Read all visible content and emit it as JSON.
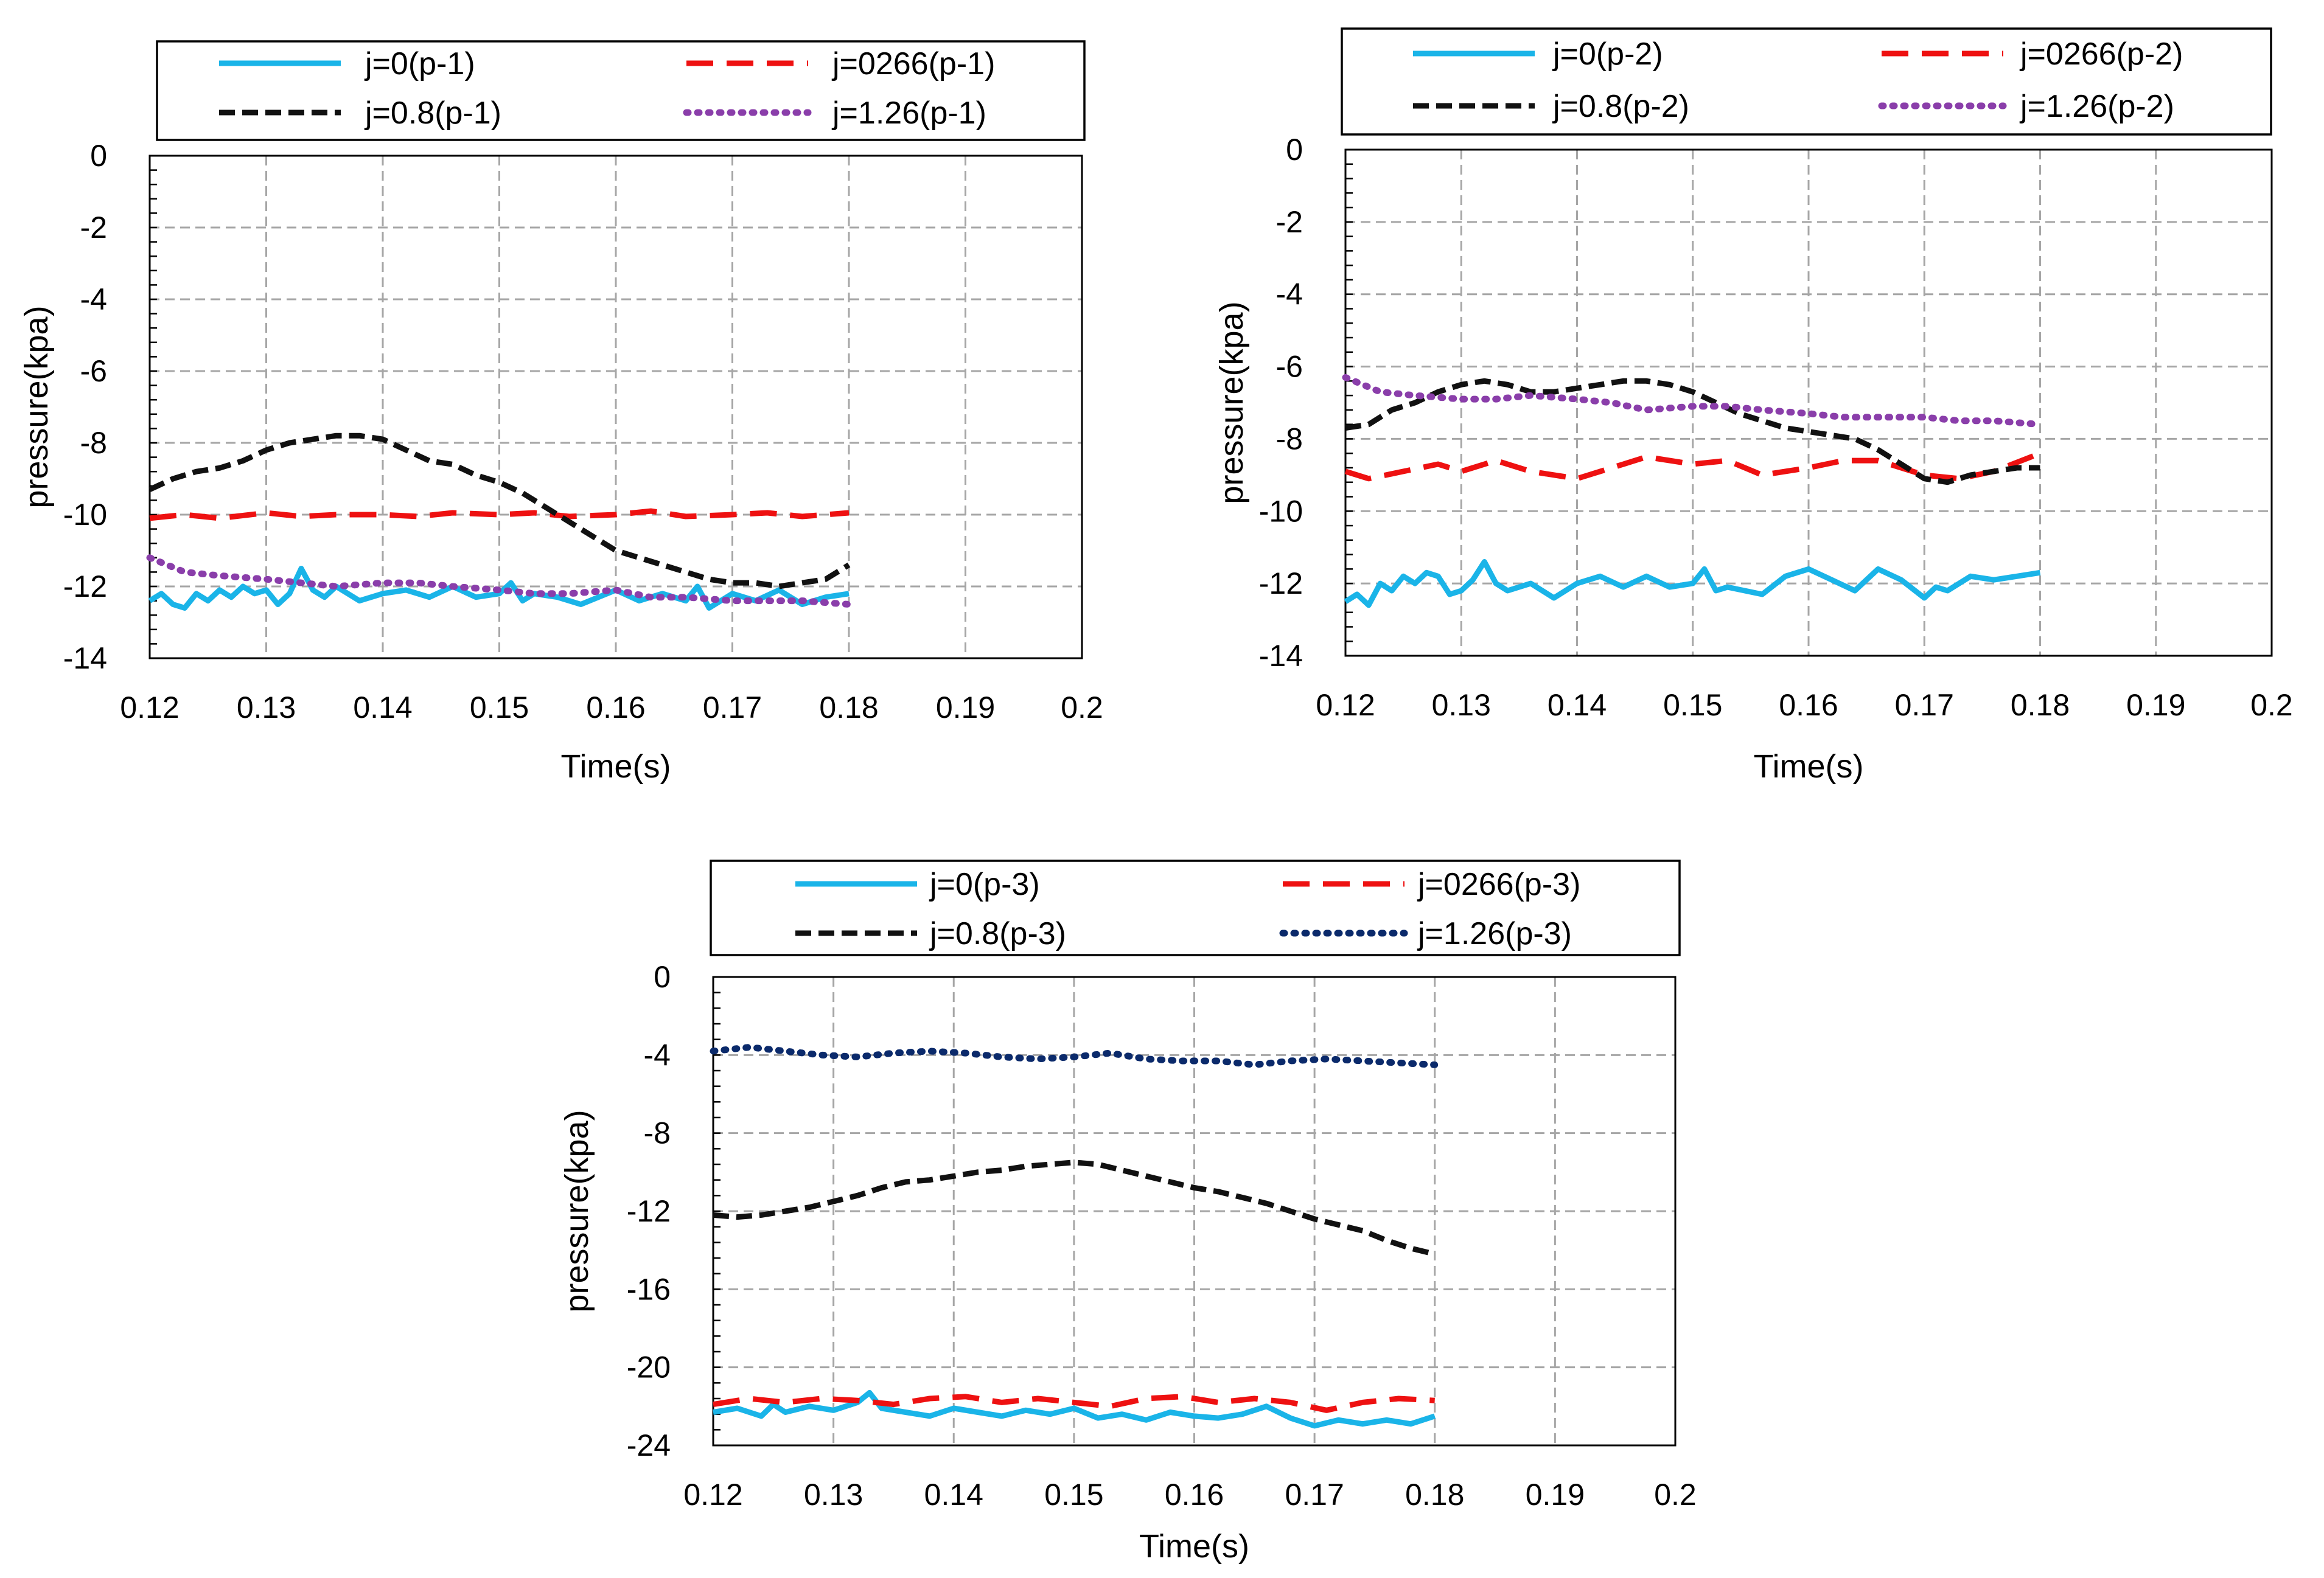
{
  "colors": {
    "j0": "#1ab4e8",
    "j0266": "#ee1111",
    "j08": "#111111",
    "j126_purple": "#8a3eaa",
    "j126_navy": "#0b2a6b",
    "grid": "#a6a6a6",
    "axis": "#000000"
  },
  "chart_data": [
    {
      "type": "line",
      "id": "p-1",
      "xlabel": "Time(s)",
      "ylabel": "pressure(kpa)",
      "xlim": [
        0.12,
        0.2
      ],
      "ylim": [
        -14,
        0
      ],
      "x_ticks": [
        "0.12",
        "0.13",
        "0.14",
        "0.15",
        "0.16",
        "0.17",
        "0.18",
        "0.19",
        "0.2"
      ],
      "y_ticks": [
        "0",
        "-2",
        "-4",
        "-6",
        "-8",
        "-10",
        "-12",
        "-14"
      ],
      "x_tick_values": [
        0.12,
        0.13,
        0.14,
        0.15,
        0.16,
        0.17,
        0.18,
        0.19,
        0.2
      ],
      "y_tick_values": [
        0,
        -2,
        -4,
        -6,
        -8,
        -10,
        -12,
        -14
      ],
      "legend": [
        "j=0(p-1)",
        "j=0266(p-1)",
        "j=0.8(p-1)",
        "j=1.26(p-1)"
      ],
      "series": [
        {
          "name": "j=0(p-1)",
          "color": "#1ab4e8",
          "style": "solid",
          "x": [
            0.12,
            0.121,
            0.122,
            0.123,
            0.124,
            0.125,
            0.126,
            0.127,
            0.128,
            0.129,
            0.13,
            0.131,
            0.132,
            0.133,
            0.134,
            0.135,
            0.136,
            0.137,
            0.138,
            0.14,
            0.142,
            0.144,
            0.146,
            0.148,
            0.15,
            0.151,
            0.152,
            0.153,
            0.155,
            0.157,
            0.16,
            0.162,
            0.164,
            0.166,
            0.167,
            0.168,
            0.17,
            0.172,
            0.174,
            0.176,
            0.178,
            0.18
          ],
          "values": [
            -12.4,
            -12.2,
            -12.5,
            -12.6,
            -12.2,
            -12.4,
            -12.1,
            -12.3,
            -12.0,
            -12.2,
            -12.1,
            -12.5,
            -12.2,
            -11.5,
            -12.1,
            -12.3,
            -12.0,
            -12.2,
            -12.4,
            -12.2,
            -12.1,
            -12.3,
            -12.0,
            -12.3,
            -12.2,
            -11.9,
            -12.4,
            -12.2,
            -12.3,
            -12.5,
            -12.1,
            -12.4,
            -12.2,
            -12.4,
            -12.0,
            -12.6,
            -12.2,
            -12.4,
            -12.1,
            -12.5,
            -12.3,
            -12.2
          ]
        },
        {
          "name": "j=0266(p-1)",
          "color": "#ee1111",
          "style": "dashed",
          "x": [
            0.12,
            0.123,
            0.126,
            0.13,
            0.133,
            0.136,
            0.14,
            0.143,
            0.146,
            0.15,
            0.153,
            0.156,
            0.16,
            0.163,
            0.166,
            0.17,
            0.173,
            0.176,
            0.18
          ],
          "values": [
            -10.1,
            -10.0,
            -10.1,
            -9.95,
            -10.05,
            -10.0,
            -10.0,
            -10.05,
            -9.95,
            -10.0,
            -9.95,
            -10.05,
            -10.0,
            -9.9,
            -10.05,
            -10.0,
            -9.95,
            -10.05,
            -9.95
          ]
        },
        {
          "name": "j=0.8(p-1)",
          "color": "#111111",
          "style": "dashed2",
          "x": [
            0.12,
            0.122,
            0.124,
            0.126,
            0.128,
            0.13,
            0.132,
            0.134,
            0.136,
            0.138,
            0.14,
            0.142,
            0.144,
            0.146,
            0.148,
            0.15,
            0.152,
            0.154,
            0.156,
            0.158,
            0.16,
            0.162,
            0.164,
            0.166,
            0.168,
            0.17,
            0.172,
            0.174,
            0.176,
            0.178,
            0.18
          ],
          "values": [
            -9.3,
            -9.0,
            -8.8,
            -8.7,
            -8.5,
            -8.2,
            -8.0,
            -7.9,
            -7.8,
            -7.8,
            -7.9,
            -8.2,
            -8.5,
            -8.6,
            -8.9,
            -9.1,
            -9.4,
            -9.8,
            -10.2,
            -10.6,
            -11.0,
            -11.2,
            -11.4,
            -11.6,
            -11.8,
            -11.9,
            -11.9,
            -12.0,
            -11.9,
            -11.8,
            -11.4
          ]
        },
        {
          "name": "j=1.26(p-1)",
          "color": "#8a3eaa",
          "style": "dotted",
          "x": [
            0.12,
            0.123,
            0.126,
            0.13,
            0.133,
            0.136,
            0.14,
            0.143,
            0.146,
            0.15,
            0.153,
            0.156,
            0.16,
            0.163,
            0.166,
            0.17,
            0.173,
            0.176,
            0.18
          ],
          "values": [
            -11.2,
            -11.6,
            -11.7,
            -11.8,
            -11.9,
            -12.0,
            -11.9,
            -11.9,
            -12.0,
            -12.1,
            -12.2,
            -12.2,
            -12.1,
            -12.3,
            -12.3,
            -12.4,
            -12.4,
            -12.4,
            -12.5
          ]
        }
      ]
    },
    {
      "type": "line",
      "id": "p-2",
      "xlabel": "Time(s)",
      "ylabel": "pressure(kpa)",
      "xlim": [
        0.12,
        0.2
      ],
      "ylim": [
        -14,
        0
      ],
      "x_ticks": [
        "0.12",
        "0.13",
        "0.14",
        "0.15",
        "0.16",
        "0.17",
        "0.18",
        "0.19",
        "0.2"
      ],
      "y_ticks": [
        "0",
        "-2",
        "-4",
        "-6",
        "-8",
        "-10",
        "-12",
        "-14"
      ],
      "x_tick_values": [
        0.12,
        0.13,
        0.14,
        0.15,
        0.16,
        0.17,
        0.18,
        0.19,
        0.2
      ],
      "y_tick_values": [
        0,
        -2,
        -4,
        -6,
        -8,
        -10,
        -12,
        -14
      ],
      "legend": [
        "j=0(p-2)",
        "j=0266(p-2)",
        "j=0.8(p-2)",
        "j=1.26(p-2)"
      ],
      "series": [
        {
          "name": "j=0(p-2)",
          "color": "#1ab4e8",
          "style": "solid",
          "x": [
            0.12,
            0.121,
            0.122,
            0.123,
            0.124,
            0.125,
            0.126,
            0.127,
            0.128,
            0.129,
            0.13,
            0.131,
            0.132,
            0.133,
            0.134,
            0.136,
            0.138,
            0.14,
            0.142,
            0.144,
            0.146,
            0.148,
            0.15,
            0.151,
            0.152,
            0.153,
            0.156,
            0.158,
            0.16,
            0.162,
            0.164,
            0.166,
            0.168,
            0.17,
            0.171,
            0.172,
            0.174,
            0.176,
            0.178,
            0.18
          ],
          "values": [
            -12.5,
            -12.3,
            -12.6,
            -12.0,
            -12.2,
            -11.8,
            -12.0,
            -11.7,
            -11.8,
            -12.3,
            -12.2,
            -11.9,
            -11.4,
            -12.0,
            -12.2,
            -12.0,
            -12.4,
            -12.0,
            -11.8,
            -12.1,
            -11.8,
            -12.1,
            -12.0,
            -11.6,
            -12.2,
            -12.1,
            -12.3,
            -11.8,
            -11.6,
            -11.9,
            -12.2,
            -11.6,
            -11.9,
            -12.4,
            -12.1,
            -12.2,
            -11.8,
            -11.9,
            -11.8,
            -11.7
          ]
        },
        {
          "name": "j=0266(p-2)",
          "color": "#ee1111",
          "style": "dashed",
          "x": [
            0.12,
            0.122,
            0.125,
            0.128,
            0.13,
            0.133,
            0.136,
            0.14,
            0.143,
            0.146,
            0.15,
            0.153,
            0.156,
            0.16,
            0.163,
            0.166,
            0.17,
            0.173,
            0.176,
            0.18
          ],
          "values": [
            -8.9,
            -9.1,
            -8.9,
            -8.7,
            -8.9,
            -8.6,
            -8.9,
            -9.1,
            -8.8,
            -8.5,
            -8.7,
            -8.6,
            -9.0,
            -8.8,
            -8.6,
            -8.6,
            -9.0,
            -9.1,
            -8.9,
            -8.4
          ]
        },
        {
          "name": "j=0.8(p-2)",
          "color": "#111111",
          "style": "dashed2",
          "x": [
            0.12,
            0.122,
            0.124,
            0.126,
            0.128,
            0.13,
            0.132,
            0.134,
            0.136,
            0.138,
            0.14,
            0.142,
            0.144,
            0.146,
            0.148,
            0.15,
            0.152,
            0.154,
            0.156,
            0.158,
            0.16,
            0.162,
            0.164,
            0.166,
            0.168,
            0.17,
            0.172,
            0.174,
            0.176,
            0.178,
            0.18
          ],
          "values": [
            -7.7,
            -7.6,
            -7.2,
            -7.0,
            -6.7,
            -6.5,
            -6.4,
            -6.5,
            -6.7,
            -6.7,
            -6.6,
            -6.5,
            -6.4,
            -6.4,
            -6.5,
            -6.7,
            -7.0,
            -7.3,
            -7.5,
            -7.7,
            -7.8,
            -7.9,
            -8.0,
            -8.3,
            -8.7,
            -9.1,
            -9.2,
            -9.0,
            -8.9,
            -8.8,
            -8.8
          ]
        },
        {
          "name": "j=1.26(p-2)",
          "color": "#8a3eaa",
          "style": "dotted",
          "x": [
            0.12,
            0.123,
            0.126,
            0.13,
            0.133,
            0.136,
            0.14,
            0.143,
            0.146,
            0.15,
            0.153,
            0.156,
            0.16,
            0.163,
            0.166,
            0.17,
            0.173,
            0.176,
            0.18
          ],
          "values": [
            -6.3,
            -6.7,
            -6.8,
            -6.9,
            -6.9,
            -6.8,
            -6.9,
            -7.0,
            -7.2,
            -7.1,
            -7.1,
            -7.2,
            -7.3,
            -7.4,
            -7.4,
            -7.4,
            -7.5,
            -7.5,
            -7.6
          ]
        }
      ]
    },
    {
      "type": "line",
      "id": "p-3",
      "xlabel": "Time(s)",
      "ylabel": "pressure(kpa)",
      "xlim": [
        0.12,
        0.2
      ],
      "ylim": [
        -24,
        0
      ],
      "x_ticks": [
        "0.12",
        "0.13",
        "0.14",
        "0.15",
        "0.16",
        "0.17",
        "0.18",
        "0.19",
        "0.2"
      ],
      "y_ticks": [
        "0",
        "-4",
        "-8",
        "-12",
        "-16",
        "-20",
        "-24"
      ],
      "x_tick_values": [
        0.12,
        0.13,
        0.14,
        0.15,
        0.16,
        0.17,
        0.18,
        0.19,
        0.2
      ],
      "y_tick_values": [
        0,
        -4,
        -8,
        -12,
        -16,
        -20,
        -24
      ],
      "legend": [
        "j=0(p-3)",
        "j=0266(p-3)",
        "j=0.8(p-3)",
        "j=1.26(p-3)"
      ],
      "series": [
        {
          "name": "j=0(p-3)",
          "color": "#1ab4e8",
          "style": "solid",
          "x": [
            0.12,
            0.122,
            0.124,
            0.125,
            0.126,
            0.128,
            0.13,
            0.132,
            0.133,
            0.134,
            0.136,
            0.138,
            0.14,
            0.142,
            0.144,
            0.146,
            0.148,
            0.15,
            0.152,
            0.154,
            0.156,
            0.158,
            0.16,
            0.162,
            0.164,
            0.166,
            0.168,
            0.17,
            0.172,
            0.174,
            0.176,
            0.178,
            0.18
          ],
          "values": [
            -22.3,
            -22.1,
            -22.5,
            -21.9,
            -22.3,
            -22.0,
            -22.2,
            -21.8,
            -21.3,
            -22.1,
            -22.3,
            -22.5,
            -22.1,
            -22.3,
            -22.5,
            -22.2,
            -22.4,
            -22.1,
            -22.6,
            -22.4,
            -22.7,
            -22.3,
            -22.5,
            -22.6,
            -22.4,
            -22.0,
            -22.6,
            -23.0,
            -22.7,
            -22.9,
            -22.7,
            -22.9,
            -22.5
          ]
        },
        {
          "name": "j=0266(p-3)",
          "color": "#ee1111",
          "style": "dashed",
          "x": [
            0.12,
            0.123,
            0.126,
            0.129,
            0.132,
            0.135,
            0.138,
            0.141,
            0.144,
            0.147,
            0.15,
            0.153,
            0.156,
            0.159,
            0.162,
            0.165,
            0.168,
            0.171,
            0.174,
            0.177,
            0.18
          ],
          "values": [
            -21.9,
            -21.6,
            -21.8,
            -21.6,
            -21.7,
            -21.9,
            -21.6,
            -21.5,
            -21.8,
            -21.6,
            -21.8,
            -22.0,
            -21.6,
            -21.5,
            -21.8,
            -21.6,
            -21.8,
            -22.2,
            -21.8,
            -21.6,
            -21.7
          ]
        },
        {
          "name": "j=0.8(p-3)",
          "color": "#111111",
          "style": "dashed2",
          "x": [
            0.12,
            0.122,
            0.124,
            0.126,
            0.128,
            0.13,
            0.132,
            0.134,
            0.136,
            0.138,
            0.14,
            0.142,
            0.144,
            0.146,
            0.148,
            0.15,
            0.152,
            0.154,
            0.156,
            0.158,
            0.16,
            0.162,
            0.164,
            0.166,
            0.168,
            0.17,
            0.172,
            0.174,
            0.176,
            0.178,
            0.18
          ],
          "values": [
            -12.2,
            -12.3,
            -12.2,
            -12.0,
            -11.8,
            -11.5,
            -11.2,
            -10.8,
            -10.5,
            -10.4,
            -10.2,
            -10.0,
            -9.9,
            -9.7,
            -9.6,
            -9.5,
            -9.6,
            -9.9,
            -10.2,
            -10.5,
            -10.8,
            -11.0,
            -11.3,
            -11.6,
            -12.0,
            -12.4,
            -12.7,
            -13.0,
            -13.5,
            -13.9,
            -14.2
          ]
        },
        {
          "name": "j=1.26(p-3)",
          "color": "#0b2a6b",
          "style": "dotted",
          "x": [
            0.12,
            0.123,
            0.126,
            0.129,
            0.132,
            0.135,
            0.138,
            0.141,
            0.144,
            0.147,
            0.15,
            0.153,
            0.156,
            0.159,
            0.162,
            0.165,
            0.168,
            0.171,
            0.174,
            0.177,
            0.18
          ],
          "values": [
            -3.8,
            -3.6,
            -3.8,
            -4.0,
            -4.1,
            -3.9,
            -3.8,
            -3.9,
            -4.1,
            -4.2,
            -4.1,
            -3.9,
            -4.2,
            -4.3,
            -4.3,
            -4.5,
            -4.3,
            -4.2,
            -4.3,
            -4.4,
            -4.5
          ]
        }
      ]
    }
  ]
}
